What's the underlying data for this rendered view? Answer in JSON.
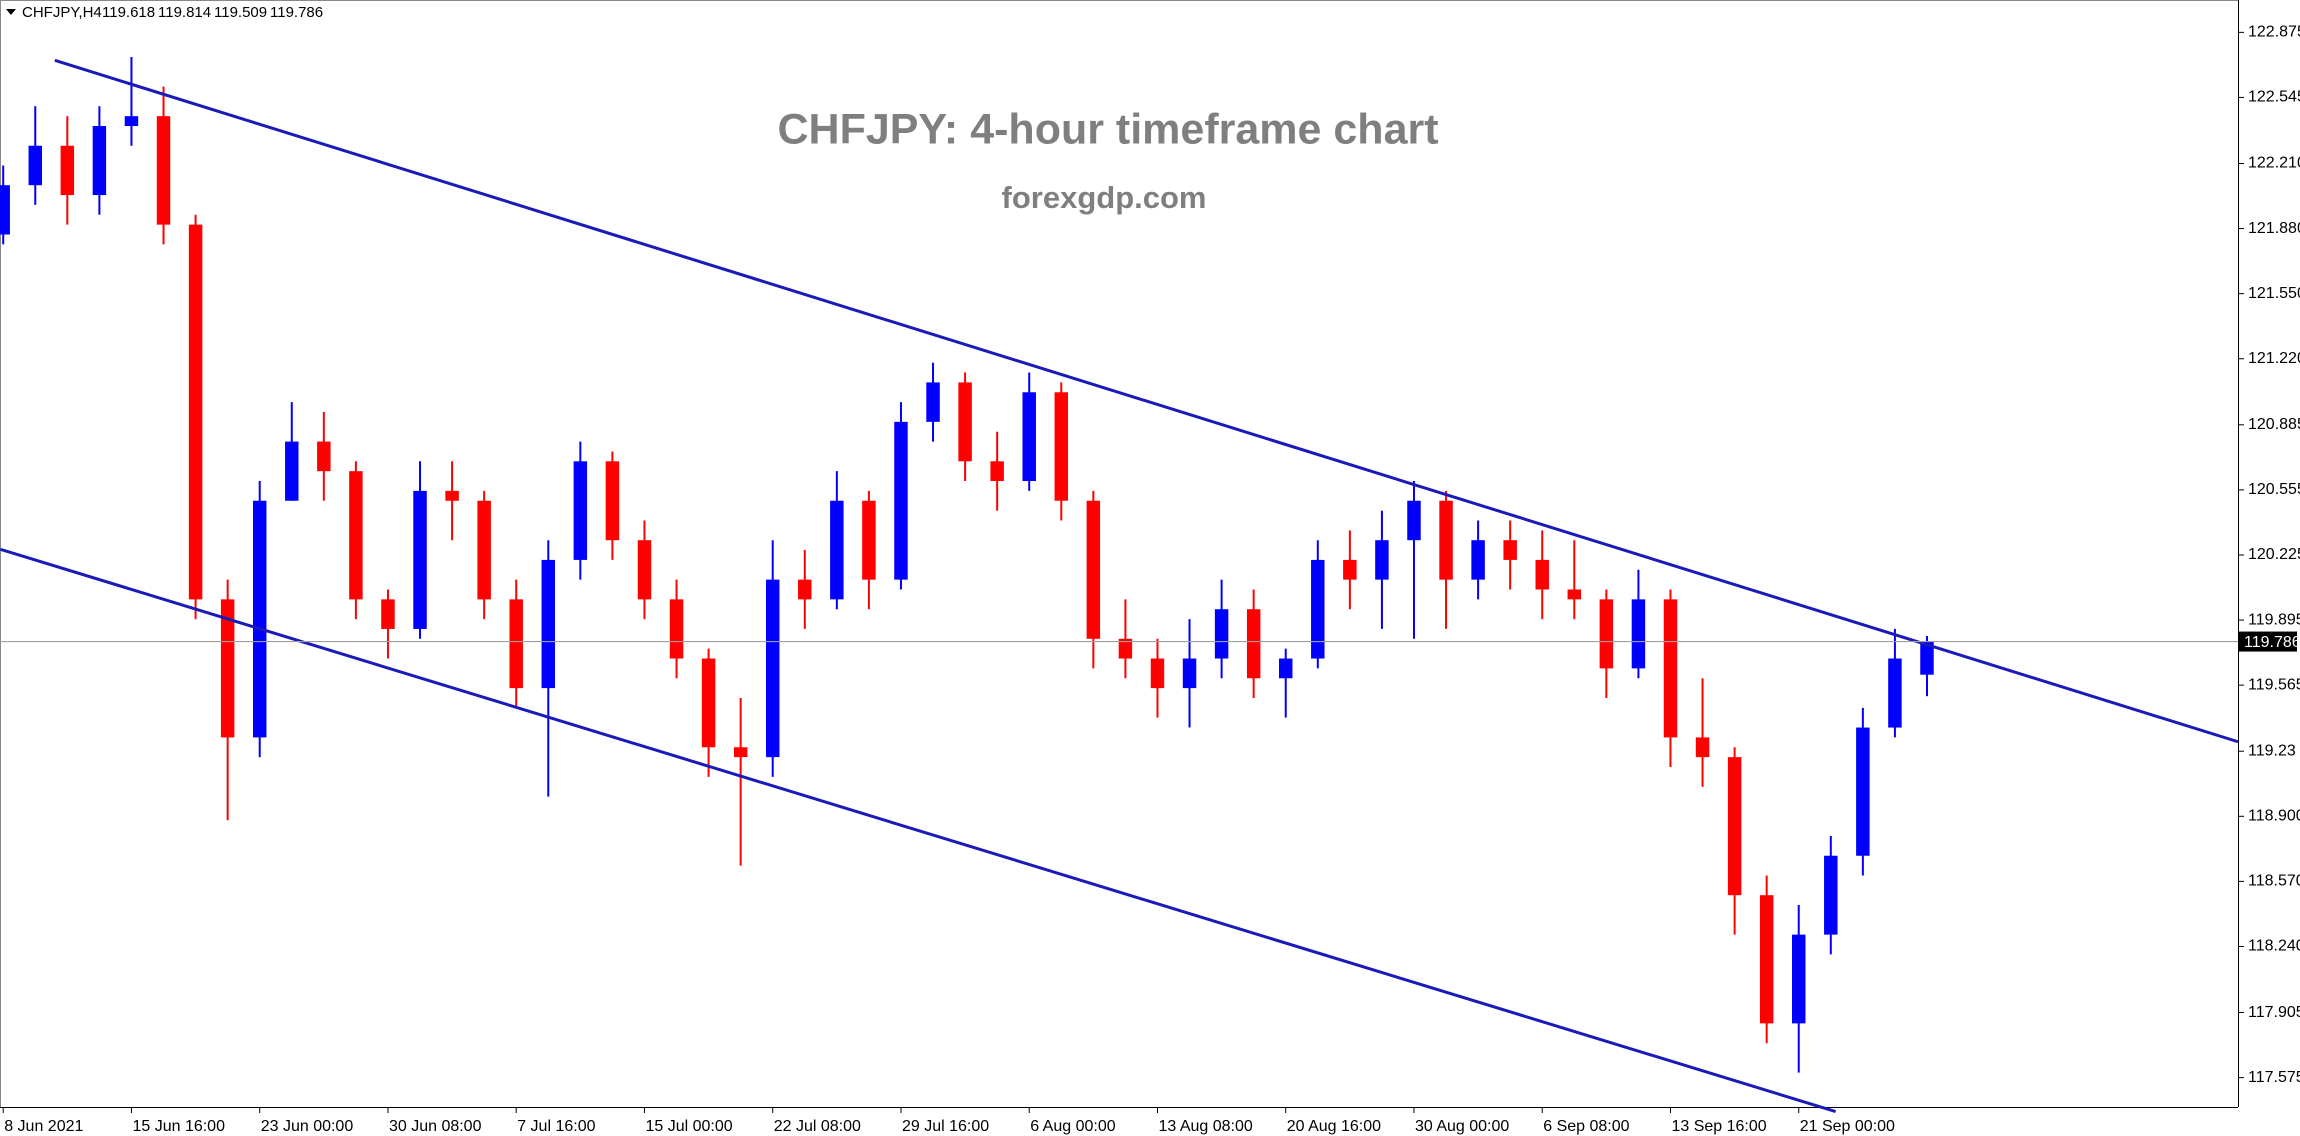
{
  "chart_data": {
    "type": "candlestick",
    "symbol": "CHFJPY,H4",
    "title": "CHFJPY: 4-hour timeframe chart",
    "subtitle": "forexgdp.com",
    "open": [
      121.85,
      122.1,
      122.3,
      122.05,
      122.4,
      122.45,
      121.9,
      120.0,
      119.3,
      120.5,
      120.8,
      120.65,
      120.0,
      119.85,
      120.55,
      120.5,
      120.0,
      119.55,
      120.2,
      120.7,
      120.3,
      120.0,
      119.7,
      119.25,
      119.2,
      120.1,
      120.0,
      120.5,
      120.1,
      120.9,
      121.1,
      120.7,
      120.6,
      121.05,
      120.5,
      119.8,
      119.7,
      119.55,
      119.7,
      119.95,
      119.6,
      119.7,
      120.2,
      120.1,
      120.3,
      120.5,
      120.1,
      120.3,
      120.2,
      120.05,
      120.0,
      119.65,
      120.0,
      119.3,
      119.2,
      118.5,
      117.85,
      118.3,
      118.7,
      119.35,
      119.618
    ],
    "high": [
      122.2,
      122.5,
      122.45,
      122.5,
      122.75,
      122.6,
      121.95,
      120.1,
      120.6,
      121.0,
      120.95,
      120.7,
      120.05,
      120.7,
      120.7,
      120.55,
      120.1,
      120.3,
      120.8,
      120.75,
      120.4,
      120.1,
      119.75,
      119.5,
      120.3,
      120.25,
      120.65,
      120.55,
      121.0,
      121.2,
      121.15,
      120.85,
      121.15,
      121.1,
      120.55,
      120.0,
      119.8,
      119.9,
      120.1,
      120.05,
      119.75,
      120.3,
      120.35,
      120.45,
      120.6,
      120.55,
      120.4,
      120.4,
      120.35,
      120.3,
      120.05,
      120.15,
      120.05,
      119.6,
      119.25,
      118.6,
      118.45,
      118.8,
      119.45,
      119.85,
      119.814
    ],
    "low": [
      121.8,
      122.0,
      121.9,
      121.95,
      122.3,
      121.8,
      119.9,
      118.88,
      119.2,
      120.5,
      120.5,
      119.9,
      119.7,
      119.8,
      120.3,
      119.9,
      119.45,
      119.0,
      120.1,
      120.2,
      119.9,
      119.6,
      119.1,
      118.65,
      119.1,
      119.85,
      119.95,
      119.95,
      120.05,
      120.8,
      120.6,
      120.45,
      120.55,
      120.4,
      119.65,
      119.6,
      119.4,
      119.35,
      119.6,
      119.5,
      119.4,
      119.65,
      119.95,
      119.85,
      119.8,
      119.85,
      120.0,
      120.05,
      119.9,
      119.9,
      119.5,
      119.6,
      119.15,
      119.05,
      118.3,
      117.75,
      117.6,
      118.2,
      118.6,
      119.3,
      119.509
    ],
    "close": [
      122.1,
      122.3,
      122.05,
      122.4,
      122.45,
      121.9,
      120.0,
      119.3,
      120.5,
      120.8,
      120.65,
      120.0,
      119.85,
      120.55,
      120.5,
      120.0,
      119.55,
      120.2,
      120.7,
      120.3,
      120.0,
      119.7,
      119.25,
      119.2,
      120.1,
      120.0,
      120.5,
      120.1,
      120.9,
      121.1,
      120.7,
      120.6,
      121.05,
      120.5,
      119.8,
      119.7,
      119.55,
      119.7,
      119.95,
      119.6,
      119.7,
      120.2,
      120.1,
      120.3,
      120.5,
      120.1,
      120.3,
      120.2,
      120.05,
      120.0,
      119.65,
      120.0,
      119.3,
      119.2,
      118.5,
      117.85,
      118.3,
      118.7,
      119.35,
      119.7,
      119.786
    ],
    "up_color": "#0000ff",
    "down_color": "#ff0000",
    "trendlines": [
      {
        "x": [
          1.61,
          69.7
        ],
        "y": [
          122.733,
          119.278
        ]
      },
      {
        "x": [
          -0.09,
          57.15
        ],
        "y": [
          120.254,
          117.403
        ]
      }
    ],
    "trendline_color": "#1a1ab8",
    "xlim": [
      -0.1,
      69.7
    ],
    "ylim": [
      117.426,
      123.039
    ],
    "xticks": [
      {
        "value": 0,
        "label": "8 Jun 2021"
      },
      {
        "value": 4,
        "label": "15 Jun 16:00"
      },
      {
        "value": 8,
        "label": "23 Jun 00:00"
      },
      {
        "value": 12,
        "label": "30 Jun 08:00"
      },
      {
        "value": 16,
        "label": "7 Jul 16:00"
      },
      {
        "value": 20,
        "label": "15 Jul 00:00"
      },
      {
        "value": 24,
        "label": "22 Jul 08:00"
      },
      {
        "value": 28,
        "label": "29 Jul 16:00"
      },
      {
        "value": 32,
        "label": "6 Aug 00:00"
      },
      {
        "value": 36,
        "label": "13 Aug 08:00"
      },
      {
        "value": 40,
        "label": "20 Aug 16:00"
      },
      {
        "value": 44,
        "label": "30 Aug 00:00"
      },
      {
        "value": 48,
        "label": "6 Sep 08:00"
      },
      {
        "value": 52,
        "label": "13 Sep 16:00"
      },
      {
        "value": 56,
        "label": "21 Sep 00:00"
      }
    ],
    "yticks": [
      122.875,
      122.545,
      {
        "value": 122.21,
        "label": "122.210"
      },
      {
        "value": 121.88,
        "label": "121.880"
      },
      {
        "value": 121.55,
        "label": "121.550"
      },
      {
        "value": 121.22,
        "label": "121.220"
      },
      120.885,
      120.555,
      120.225,
      119.895,
      119.565,
      119.23,
      {
        "value": 118.9,
        "label": "118.900"
      },
      {
        "value": 118.57,
        "label": "118.570"
      },
      {
        "value": 118.24,
        "label": "118.240"
      },
      117.905,
      117.575
    ]
  }
}
